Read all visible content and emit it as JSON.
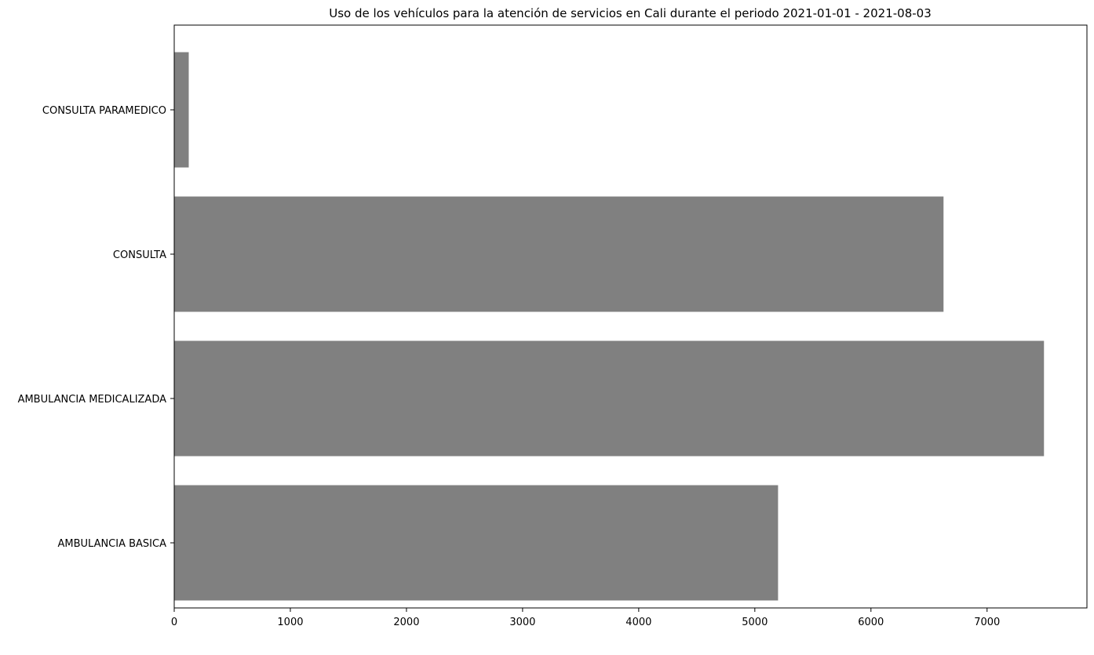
{
  "chart_data": {
    "type": "bar",
    "orientation": "horizontal",
    "title": "Uso de los vehículos para la atención de servicios en Cali durante el periodo 2021-01-01 - 2021-08-03",
    "xlabel": "",
    "ylabel": "",
    "categories": [
      "AMBULANCIA BASICA",
      "AMBULANCIA MEDICALIZADA",
      "CONSULTA",
      "CONSULTA PARAMEDICO"
    ],
    "values": [
      5200,
      7490,
      6625,
      125
    ],
    "xlim": [
      0,
      7860
    ],
    "xticks": [
      0,
      1000,
      2000,
      3000,
      4000,
      5000,
      6000,
      7000
    ],
    "grid": false,
    "bar_color": "#808080"
  }
}
